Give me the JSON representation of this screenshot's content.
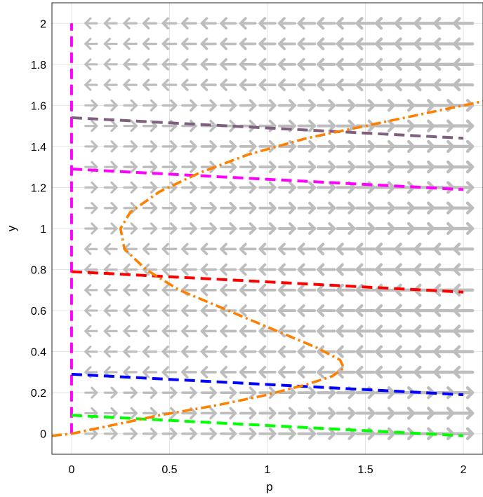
{
  "chart_data": {
    "type": "line",
    "title": "",
    "xlabel": "p",
    "ylabel": "y",
    "xlim": [
      -0.1,
      2.1
    ],
    "ylim": [
      -0.1,
      2.1
    ],
    "x_ticks": [
      0,
      0.5,
      1,
      1.5,
      2
    ],
    "x_tick_labels": [
      "0",
      "0.5",
      "1",
      "1.5",
      "2"
    ],
    "y_ticks": [
      0,
      0.2,
      0.4,
      0.6,
      0.8,
      1,
      1.2,
      1.4,
      1.6,
      1.8,
      2
    ],
    "y_tick_labels": [
      "0",
      "0.2",
      "0.4",
      "0.6",
      "0.8",
      "1",
      "1.2",
      "1.4",
      "1.6",
      "1.8",
      "2"
    ],
    "grid": true,
    "legend": "none",
    "vector_field": {
      "color": "#bdbdbd",
      "x_grid": [
        0.1,
        0.2,
        0.3,
        0.4,
        0.5,
        0.6,
        0.7,
        0.8,
        0.9,
        1.0,
        1.1,
        1.2,
        1.3,
        1.4,
        1.5,
        1.6,
        1.7,
        1.8,
        1.9,
        2.0
      ],
      "y_grid": [
        0,
        0.1,
        0.2,
        0.3,
        0.4,
        0.5,
        0.6,
        0.7,
        0.8,
        0.9,
        1.0,
        1.1,
        1.2,
        1.3,
        1.4,
        1.5,
        1.6,
        1.7,
        1.8,
        1.9,
        2.0
      ],
      "direction_rule": "dp/dt = p*y*(y-0.25)*(1-y)*(y-1.6) approx; sign determines arrow direction"
    },
    "series": [
      {
        "color": "#ff00ff",
        "style": "dashed",
        "x": [
          0,
          0
        ],
        "y": [
          0,
          2
        ]
      },
      {
        "color": "#7f5f7f",
        "style": "dashed",
        "x": [
          0,
          2
        ],
        "y": [
          1.54,
          1.44
        ]
      },
      {
        "color": "#ff00ff",
        "style": "dashed",
        "x": [
          0,
          2
        ],
        "y": [
          1.29,
          1.19
        ]
      },
      {
        "color": "#ff0000",
        "style": "dashed",
        "x": [
          0,
          2
        ],
        "y": [
          0.79,
          0.69
        ]
      },
      {
        "color": "#0000ff",
        "style": "dashed",
        "x": [
          0,
          2
        ],
        "y": [
          0.29,
          0.19
        ]
      },
      {
        "color": "#00ff00",
        "style": "dashed",
        "x": [
          0,
          2
        ],
        "y": [
          0.09,
          -0.01
        ]
      },
      {
        "color": "#ff8000",
        "style": "dashdot",
        "x": [
          -0.1,
          0.0,
          0.2,
          0.45,
          0.75,
          1.0,
          1.2,
          1.33,
          1.39,
          1.37,
          1.25,
          1.05,
          0.8,
          0.55,
          0.38,
          0.27,
          0.25,
          0.3,
          0.45,
          0.65,
          0.9,
          1.2,
          1.5,
          1.8,
          2.1
        ],
        "y": [
          -0.01,
          0.0,
          0.04,
          0.09,
          0.14,
          0.19,
          0.24,
          0.28,
          0.32,
          0.36,
          0.42,
          0.5,
          0.6,
          0.7,
          0.8,
          0.9,
          1.0,
          1.08,
          1.18,
          1.27,
          1.36,
          1.44,
          1.5,
          1.56,
          1.62
        ]
      }
    ]
  },
  "colors": {
    "grid": "#e3e3e3",
    "frame": "#222222",
    "arrow": "#bdbdbd"
  }
}
